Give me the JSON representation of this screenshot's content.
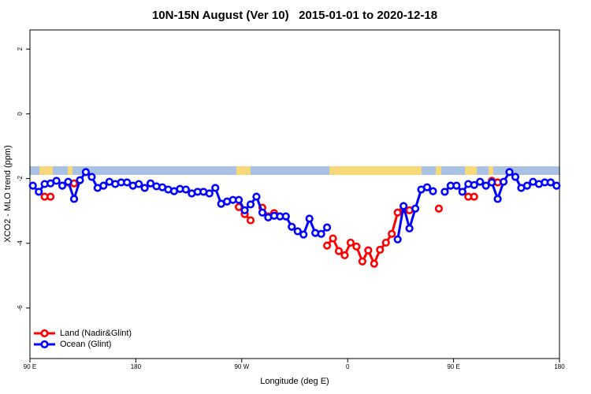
{
  "chart_data": {
    "type": "line",
    "title": "10N-15N August (Ver 10)   2015-01-01 to 2020-12-18",
    "xlabel": "Longitude (deg E)",
    "ylabel": "XCO2 - MLO trend (ppm)",
    "x": [
      92.5,
      97.5,
      102.5,
      107.5,
      112.5,
      117.5,
      122.5,
      127.5,
      132.5,
      137.5,
      142.5,
      147.5,
      152.5,
      157.5,
      162.5,
      167.5,
      172.5,
      177.5,
      182.5,
      187.5,
      192.5,
      197.5,
      202.5,
      207.5,
      212.5,
      217.5,
      222.5,
      227.5,
      232.5,
      237.5,
      242.5,
      247.5,
      252.5,
      257.5,
      262.5,
      267.5,
      272.5,
      277.5,
      282.5,
      287.5,
      292.5,
      297.5,
      302.5,
      307.5,
      312.5,
      317.5,
      322.5,
      327.5,
      332.5,
      337.5,
      342.5,
      347.5,
      352.5,
      357.5,
      362.5,
      367.5,
      372.5,
      377.5,
      382.5,
      387.5,
      392.5,
      397.5,
      402.5,
      407.5,
      412.5,
      417.5,
      422.5,
      427.5,
      432.5,
      437.5,
      442.5,
      447.5,
      452.5,
      457.5,
      462.5,
      467.5,
      472.5,
      477.5,
      482.5,
      487.5,
      492.5,
      497.5,
      502.5,
      507.5,
      512.5,
      517.5,
      522.5,
      527.5,
      532.5,
      537.5
    ],
    "series": [
      {
        "name": "Land (Nadir&Glint)",
        "color": "#ff0000",
        "values": [
          null,
          null,
          -2.56,
          -2.56,
          null,
          null,
          -2.12,
          -2.15,
          null,
          null,
          null,
          null,
          null,
          null,
          null,
          null,
          null,
          null,
          null,
          null,
          null,
          null,
          null,
          null,
          null,
          null,
          null,
          null,
          null,
          null,
          null,
          null,
          null,
          null,
          null,
          -2.88,
          -3.1,
          -3.29,
          null,
          -2.9,
          -3.17,
          -3.07,
          null,
          null,
          null,
          null,
          null,
          null,
          null,
          null,
          -4.07,
          -3.85,
          -4.24,
          -4.37,
          -3.98,
          -4.1,
          -4.56,
          -4.22,
          -4.63,
          -4.2,
          -3.98,
          -3.71,
          -3.05,
          -2.95,
          -2.98,
          null,
          null,
          null,
          null,
          -2.93,
          null,
          null,
          null,
          null,
          -2.56,
          -2.56,
          null,
          null,
          -2.07,
          -2.12,
          null,
          null,
          null,
          null,
          null,
          null,
          null,
          null,
          null,
          null
        ]
      },
      {
        "name": "Ocean (Glint)",
        "color": "#0000ff",
        "values": [
          -2.22,
          -2.41,
          -2.17,
          -2.15,
          -2.07,
          -2.22,
          -2.1,
          -2.63,
          -2.05,
          -1.8,
          -1.95,
          -2.29,
          -2.22,
          -2.1,
          -2.17,
          -2.12,
          -2.12,
          -2.22,
          -2.17,
          -2.29,
          -2.15,
          -2.24,
          -2.27,
          -2.34,
          -2.39,
          -2.32,
          -2.34,
          -2.46,
          -2.41,
          -2.41,
          -2.46,
          -2.29,
          -2.78,
          -2.71,
          -2.66,
          -2.66,
          -2.98,
          -2.8,
          -2.56,
          -3.05,
          -3.2,
          -3.15,
          -3.17,
          -3.17,
          -3.49,
          -3.63,
          -3.73,
          -3.24,
          -3.68,
          -3.71,
          -3.51,
          null,
          null,
          null,
          null,
          null,
          null,
          null,
          null,
          null,
          null,
          null,
          -3.88,
          -2.85,
          -3.54,
          -2.93,
          -2.34,
          -2.27,
          -2.39,
          null,
          -2.41,
          -2.22,
          -2.22,
          -2.41,
          -2.17,
          -2.2,
          -2.1,
          -2.22,
          -2.12,
          -2.63,
          -2.1,
          -1.8,
          -1.95,
          -2.29,
          -2.22,
          -2.1,
          -2.17,
          -2.12,
          -2.12,
          -2.22
        ]
      }
    ],
    "xlim": [
      90,
      540
    ],
    "xticks": [
      {
        "value": 90,
        "label": "90 E"
      },
      180,
      {
        "value": 270,
        "label": "90 W"
      },
      {
        "value": 360,
        "label": "0"
      },
      {
        "value": 450,
        "label": "90 E"
      },
      {
        "value": 540,
        "label": "180"
      }
    ],
    "ylim": [
      -7.56,
      2.59
    ],
    "yticks": [
      2,
      0,
      -2,
      -4,
      -6
    ],
    "legend": "lower left"
  }
}
